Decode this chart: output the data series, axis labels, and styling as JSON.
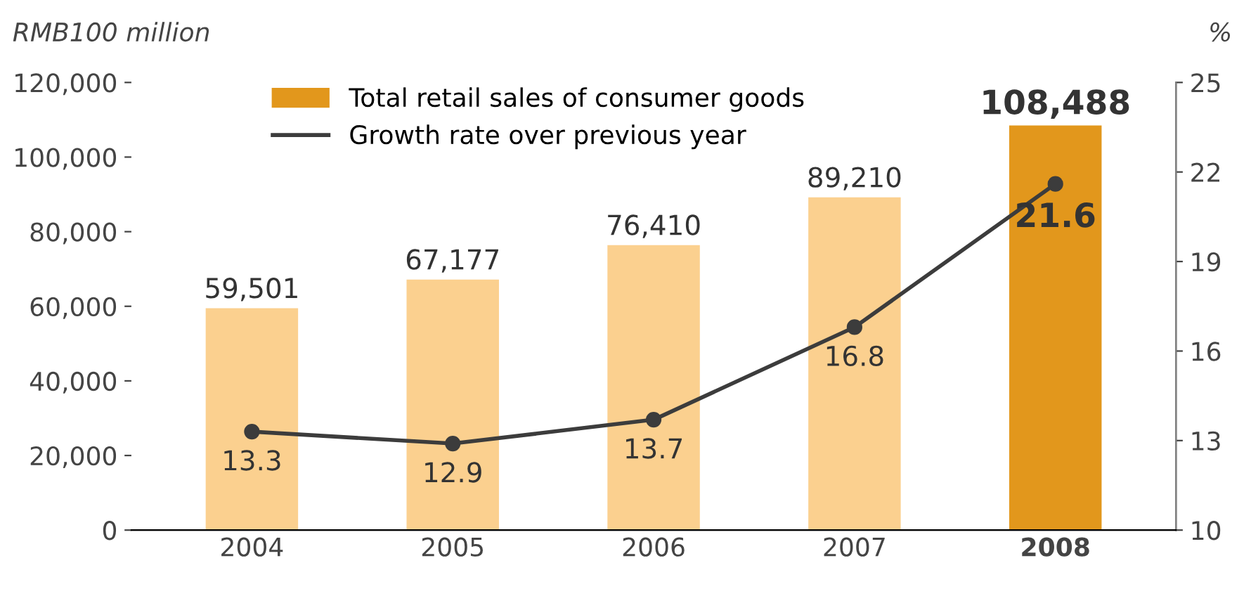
{
  "chart_data": {
    "type": "bar",
    "ylabel": "RMB100 million",
    "y2label": "%",
    "categories": [
      "2004",
      "2005",
      "2006",
      "2007",
      "2008"
    ],
    "series": [
      {
        "name": "Total retail sales of consumer goods",
        "color": "#e2971c",
        "colors": [
          "#fbd08f",
          "#fbd08f",
          "#fbd08f",
          "#fbd08f",
          "#e2971c"
        ],
        "values": [
          59501,
          67177,
          76410,
          89210,
          108488
        ],
        "value_labels": [
          "59,501",
          "67,177",
          "76,410",
          "89,210",
          "108,488"
        ]
      },
      {
        "name": "Growth rate over previous year",
        "type": "line",
        "axis": "y2",
        "color": "#3c3c3c",
        "marker": "circle",
        "values": [
          13.3,
          12.9,
          13.7,
          16.8,
          21.6
        ],
        "value_labels": [
          "13.3",
          "12.9",
          "13.7",
          "16.8",
          "21.6"
        ]
      }
    ],
    "ylim": [
      0,
      120000
    ],
    "yticks": [
      {
        "value": 0,
        "label": "0"
      },
      {
        "value": 20000,
        "label": "20,000"
      },
      {
        "value": 40000,
        "label": "40,000"
      },
      {
        "value": 60000,
        "label": "60,000"
      },
      {
        "value": 80000,
        "label": "80,000"
      },
      {
        "value": 100000,
        "label": "100,000"
      },
      {
        "value": 120000,
        "label": "120,000"
      }
    ],
    "y2lim": [
      10,
      25
    ],
    "y2ticks": [
      10,
      13,
      16,
      19,
      22,
      25
    ],
    "legend": "top",
    "grid": false
  }
}
